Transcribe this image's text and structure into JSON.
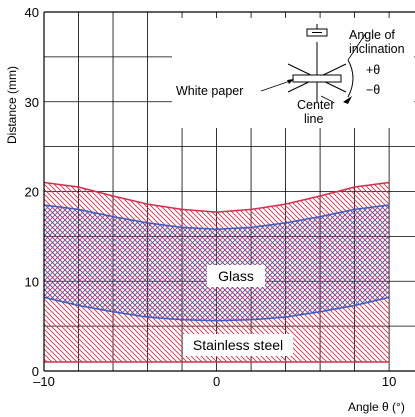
{
  "chart_data": {
    "type": "area",
    "title": "",
    "xlabel": "Angle θ (°)",
    "ylabel": "Distance (mm)",
    "xlim": [
      -10,
      10
    ],
    "ylim": [
      0,
      40
    ],
    "x_ticks": [
      "–10",
      "0",
      "10"
    ],
    "y_ticks": [
      "0",
      "10",
      "20",
      "30",
      "40"
    ],
    "grid": true,
    "series": [
      {
        "name": "Stainless steel",
        "color": "#d62d4b",
        "x": [
          -10,
          -8,
          -6,
          -4,
          -2,
          0,
          2,
          4,
          6,
          8,
          10
        ],
        "upper": [
          21.0,
          20.5,
          19.5,
          18.6,
          18.0,
          17.7,
          18.0,
          18.6,
          19.5,
          20.5,
          21.0
        ],
        "lower": [
          1.0,
          1.0,
          1.0,
          1.0,
          1.0,
          1.0,
          1.0,
          1.0,
          1.0,
          1.0,
          1.0
        ]
      },
      {
        "name": "Glass",
        "color": "#3a5bc0",
        "x": [
          -10,
          -8,
          -6,
          -4,
          -2,
          0,
          2,
          4,
          6,
          8,
          10
        ],
        "upper": [
          18.5,
          18.0,
          17.2,
          16.5,
          16.0,
          15.8,
          16.0,
          16.5,
          17.2,
          18.0,
          18.5
        ],
        "lower": [
          8.2,
          7.3,
          6.6,
          6.0,
          5.7,
          5.6,
          5.7,
          6.0,
          6.6,
          7.3,
          8.2
        ]
      }
    ],
    "annotations": {
      "angle": "Angle of",
      "inclination": "inclination",
      "white_paper": "White paper",
      "center": "Center",
      "line": "line",
      "plus_theta": "+θ",
      "minus_theta": "−θ"
    }
  }
}
